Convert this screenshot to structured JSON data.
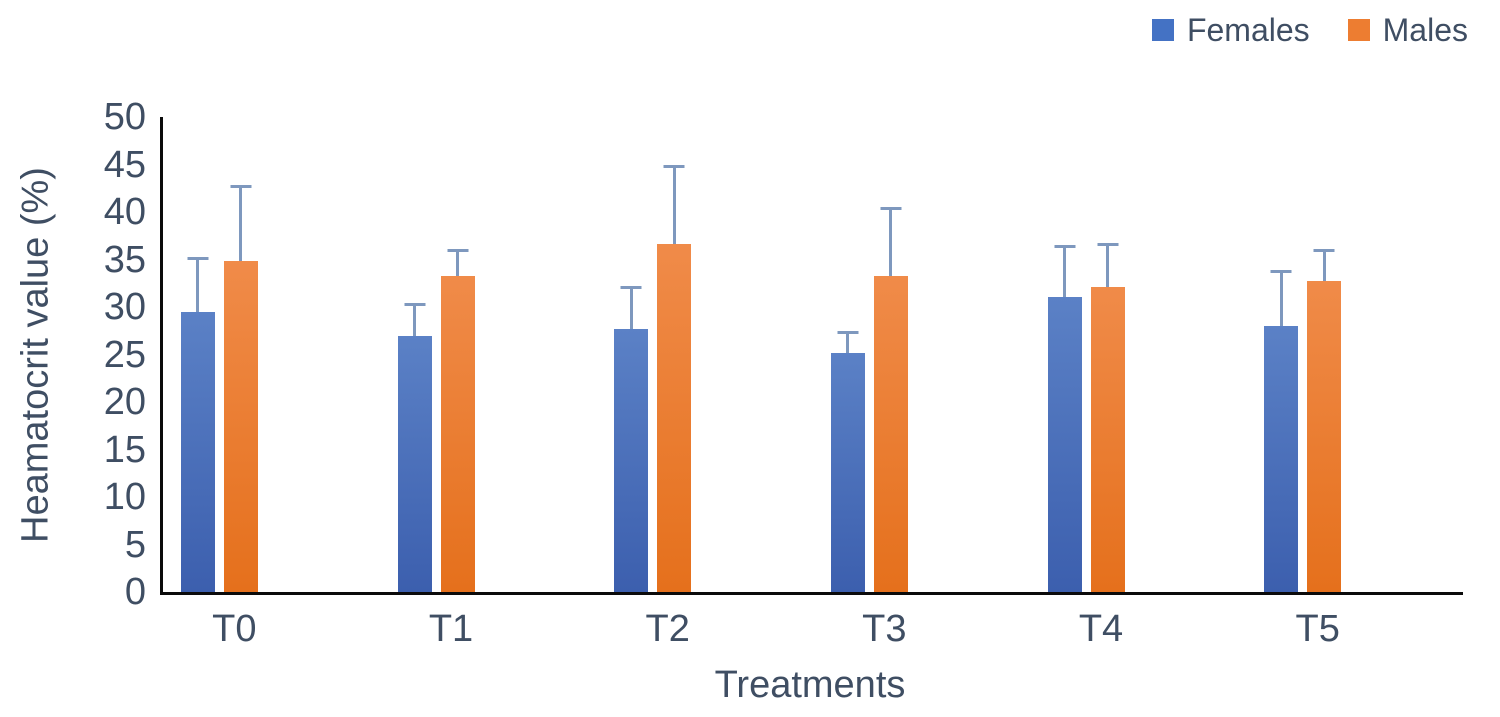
{
  "chart_data": {
    "type": "bar",
    "title": "",
    "xlabel": "Treatments",
    "ylabel": "Heamatocrit value (%)",
    "categories": [
      "T0",
      "T1",
      "T2",
      "T3",
      "T4",
      "T5"
    ],
    "series": [
      {
        "name": "Females",
        "color": "#4472C4",
        "color_top": "#5b81c6",
        "color_bottom": "#3c5fae",
        "values": [
          29.5,
          26.9,
          27.7,
          25.2,
          31.1,
          28.0
        ],
        "errors_plus": [
          5.8,
          3.5,
          4.5,
          2.3,
          5.4,
          5.9
        ]
      },
      {
        "name": "Males",
        "color": "#ED7D31",
        "color_top": "#f08b49",
        "color_bottom": "#e5701c",
        "values": [
          34.8,
          33.3,
          36.6,
          33.3,
          32.1,
          32.7
        ],
        "errors_plus": [
          8.0,
          2.8,
          8.4,
          7.2,
          4.6,
          3.4
        ]
      }
    ],
    "ylim": [
      0,
      50
    ],
    "yticks": [
      0,
      5,
      10,
      15,
      20,
      25,
      30,
      35,
      40,
      45,
      50
    ],
    "grid": false,
    "legend_position": "top-right",
    "error_bar_color": "#7e98be",
    "axis_text_color": "#3f4e63",
    "axis_line_color": "#0b0b0b"
  }
}
